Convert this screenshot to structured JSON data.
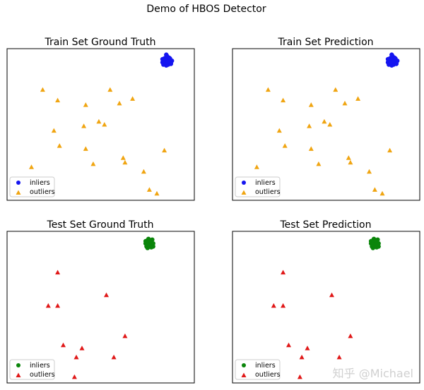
{
  "figure": {
    "suptitle": "Demo of HBOS Detector",
    "watermark": "知乎 @Michael"
  },
  "colors": {
    "train_inlier": "#1515f0",
    "train_outlier": "#f0a512",
    "test_inlier": "#0a850a",
    "test_outlier": "#e01818"
  },
  "chart_data": [
    {
      "type": "scatter",
      "title": "Train Set Ground Truth",
      "xlim": [
        0,
        10
      ],
      "ylim": [
        0,
        10
      ],
      "legend": {
        "position": "lower-left",
        "entries": [
          "inliers",
          "outliers"
        ]
      },
      "inlier_color": "train_inlier",
      "outlier_color": "train_outlier",
      "outlier_marker": "triangle",
      "inliers": {
        "x": [
          8.3,
          8.4,
          8.5,
          8.6,
          8.7,
          8.8,
          8.5,
          8.45,
          8.55,
          8.35,
          8.65,
          8.4,
          8.6,
          8.5,
          8.75,
          8.3,
          8.5,
          8.7,
          8.45,
          8.6
        ],
        "y": [
          9.1,
          9.35,
          9.45,
          9.3,
          9.1,
          9.2,
          8.9,
          9.0,
          9.5,
          8.95,
          9.4,
          9.2,
          8.95,
          9.25,
          9.0,
          9.3,
          9.6,
          9.35,
          9.1,
          9.15
        ]
      },
      "outliers": {
        "x": [
          1.9,
          2.7,
          4.2,
          5.5,
          6.0,
          6.7,
          2.5,
          4.1,
          4.9,
          5.2,
          2.8,
          4.2,
          8.4,
          6.2,
          4.6,
          6.3,
          1.3,
          7.3,
          7.6,
          8.0
        ],
        "y": [
          7.3,
          6.6,
          6.3,
          7.3,
          6.4,
          6.7,
          4.6,
          4.9,
          5.2,
          5.0,
          3.6,
          3.4,
          3.3,
          2.8,
          2.4,
          2.5,
          2.2,
          1.9,
          0.7,
          0.45
        ]
      }
    },
    {
      "type": "scatter",
      "title": "Train Set Prediction",
      "xlim": [
        0,
        10
      ],
      "ylim": [
        0,
        10
      ],
      "legend": {
        "position": "lower-left",
        "entries": [
          "inliers",
          "outliers"
        ]
      },
      "inlier_color": "train_inlier",
      "outlier_color": "train_outlier",
      "outlier_marker": "triangle",
      "inliers": {
        "x": [
          8.3,
          8.4,
          8.5,
          8.6,
          8.7,
          8.8,
          8.5,
          8.45,
          8.55,
          8.35,
          8.65,
          8.4,
          8.6,
          8.5,
          8.75,
          8.3,
          8.5,
          8.7,
          8.45,
          8.6
        ],
        "y": [
          9.1,
          9.35,
          9.45,
          9.3,
          9.1,
          9.2,
          8.9,
          9.0,
          9.5,
          8.95,
          9.4,
          9.2,
          8.95,
          9.25,
          9.0,
          9.3,
          9.6,
          9.35,
          9.1,
          9.15
        ]
      },
      "outliers": {
        "x": [
          1.9,
          2.7,
          4.2,
          5.5,
          6.0,
          6.7,
          2.5,
          4.1,
          4.9,
          5.2,
          2.8,
          4.2,
          8.4,
          6.2,
          4.6,
          6.3,
          1.3,
          7.3,
          7.6,
          8.0
        ],
        "y": [
          7.3,
          6.6,
          6.3,
          7.3,
          6.4,
          6.7,
          4.6,
          4.9,
          5.2,
          5.0,
          3.6,
          3.4,
          3.3,
          2.8,
          2.4,
          2.5,
          2.2,
          1.9,
          0.7,
          0.45
        ]
      }
    },
    {
      "type": "scatter",
      "title": "Test Set Ground Truth",
      "xlim": [
        0,
        10
      ],
      "ylim": [
        0,
        10
      ],
      "legend": {
        "position": "lower-left",
        "entries": [
          "inliers",
          "outliers"
        ]
      },
      "inlier_color": "test_inlier",
      "outlier_color": "test_outlier",
      "outlier_marker": "triangle",
      "inliers": {
        "x": [
          7.4,
          7.5,
          7.6,
          7.7,
          7.8,
          7.45,
          7.55,
          7.65,
          7.75,
          7.5,
          7.6,
          7.7,
          7.4,
          7.8,
          7.55,
          7.65,
          7.5,
          7.7
        ],
        "y": [
          9.2,
          9.4,
          9.1,
          9.3,
          9.0,
          9.0,
          9.5,
          9.2,
          9.45,
          8.9,
          9.0,
          8.95,
          9.35,
          9.2,
          9.3,
          9.4,
          9.15,
          9.1
        ]
      },
      "outliers": {
        "x": [
          2.7,
          5.3,
          2.2,
          2.7,
          6.3,
          3.0,
          4.0,
          3.7,
          5.7,
          3.6
        ],
        "y": [
          7.3,
          5.8,
          5.1,
          5.1,
          3.1,
          2.5,
          2.3,
          1.7,
          1.7,
          0.4
        ]
      }
    },
    {
      "type": "scatter",
      "title": "Test Set Prediction",
      "xlim": [
        0,
        10
      ],
      "ylim": [
        0,
        10
      ],
      "legend": {
        "position": "lower-left",
        "entries": [
          "inliers",
          "outliers"
        ]
      },
      "inlier_color": "test_inlier",
      "outlier_color": "test_outlier",
      "outlier_marker": "triangle",
      "inliers": {
        "x": [
          7.4,
          7.5,
          7.6,
          7.7,
          7.8,
          7.45,
          7.55,
          7.65,
          7.75,
          7.5,
          7.6,
          7.7,
          7.4,
          7.8,
          7.55,
          7.65,
          7.5,
          7.7
        ],
        "y": [
          9.2,
          9.4,
          9.1,
          9.3,
          9.0,
          9.0,
          9.5,
          9.2,
          9.45,
          8.9,
          9.0,
          8.95,
          9.35,
          9.2,
          9.3,
          9.4,
          9.15,
          9.1
        ]
      },
      "outliers": {
        "x": [
          2.7,
          5.3,
          2.2,
          2.7,
          6.3,
          3.0,
          4.0,
          3.7,
          5.7,
          3.6
        ],
        "y": [
          7.3,
          5.8,
          5.1,
          5.1,
          3.1,
          2.5,
          2.3,
          1.7,
          1.7,
          0.4
        ]
      }
    }
  ]
}
